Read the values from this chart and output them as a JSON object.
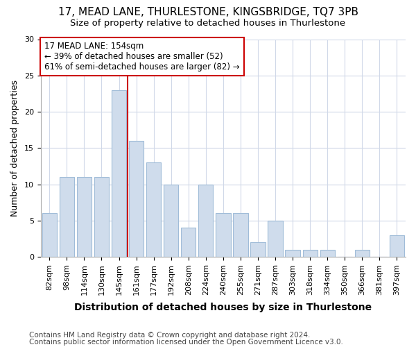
{
  "title1": "17, MEAD LANE, THURLESTONE, KINGSBRIDGE, TQ7 3PB",
  "title2": "Size of property relative to detached houses in Thurlestone",
  "xlabel": "Distribution of detached houses by size in Thurlestone",
  "ylabel": "Number of detached properties",
  "categories": [
    "82sqm",
    "98sqm",
    "114sqm",
    "130sqm",
    "145sqm",
    "161sqm",
    "177sqm",
    "192sqm",
    "208sqm",
    "224sqm",
    "240sqm",
    "255sqm",
    "271sqm",
    "287sqm",
    "303sqm",
    "318sqm",
    "334sqm",
    "350sqm",
    "366sqm",
    "381sqm",
    "397sqm"
  ],
  "values": [
    6,
    11,
    11,
    11,
    23,
    16,
    13,
    10,
    4,
    10,
    6,
    6,
    2,
    5,
    1,
    1,
    1,
    0,
    1,
    0,
    3
  ],
  "bar_color": "#cfdcec",
  "bar_edge_color": "#a0bcd8",
  "red_line_x": 4.5,
  "annotation_line1": "17 MEAD LANE: 154sqm",
  "annotation_line2": "← 39% of detached houses are smaller (52)",
  "annotation_line3": "61% of semi-detached houses are larger (82) →",
  "annotation_box_color": "#ffffff",
  "annotation_box_edge": "#cc0000",
  "red_line_color": "#cc0000",
  "ylim": [
    0,
    30
  ],
  "yticks": [
    0,
    5,
    10,
    15,
    20,
    25,
    30
  ],
  "footer1": "Contains HM Land Registry data © Crown copyright and database right 2024.",
  "footer2": "Contains public sector information licensed under the Open Government Licence v3.0.",
  "fig_background_color": "#ffffff",
  "plot_background_color": "#ffffff",
  "grid_color": "#d0d8e8",
  "title1_fontsize": 11,
  "title2_fontsize": 9.5,
  "xlabel_fontsize": 10,
  "ylabel_fontsize": 9,
  "tick_fontsize": 8,
  "footer_fontsize": 7.5,
  "annotation_fontsize": 8.5
}
